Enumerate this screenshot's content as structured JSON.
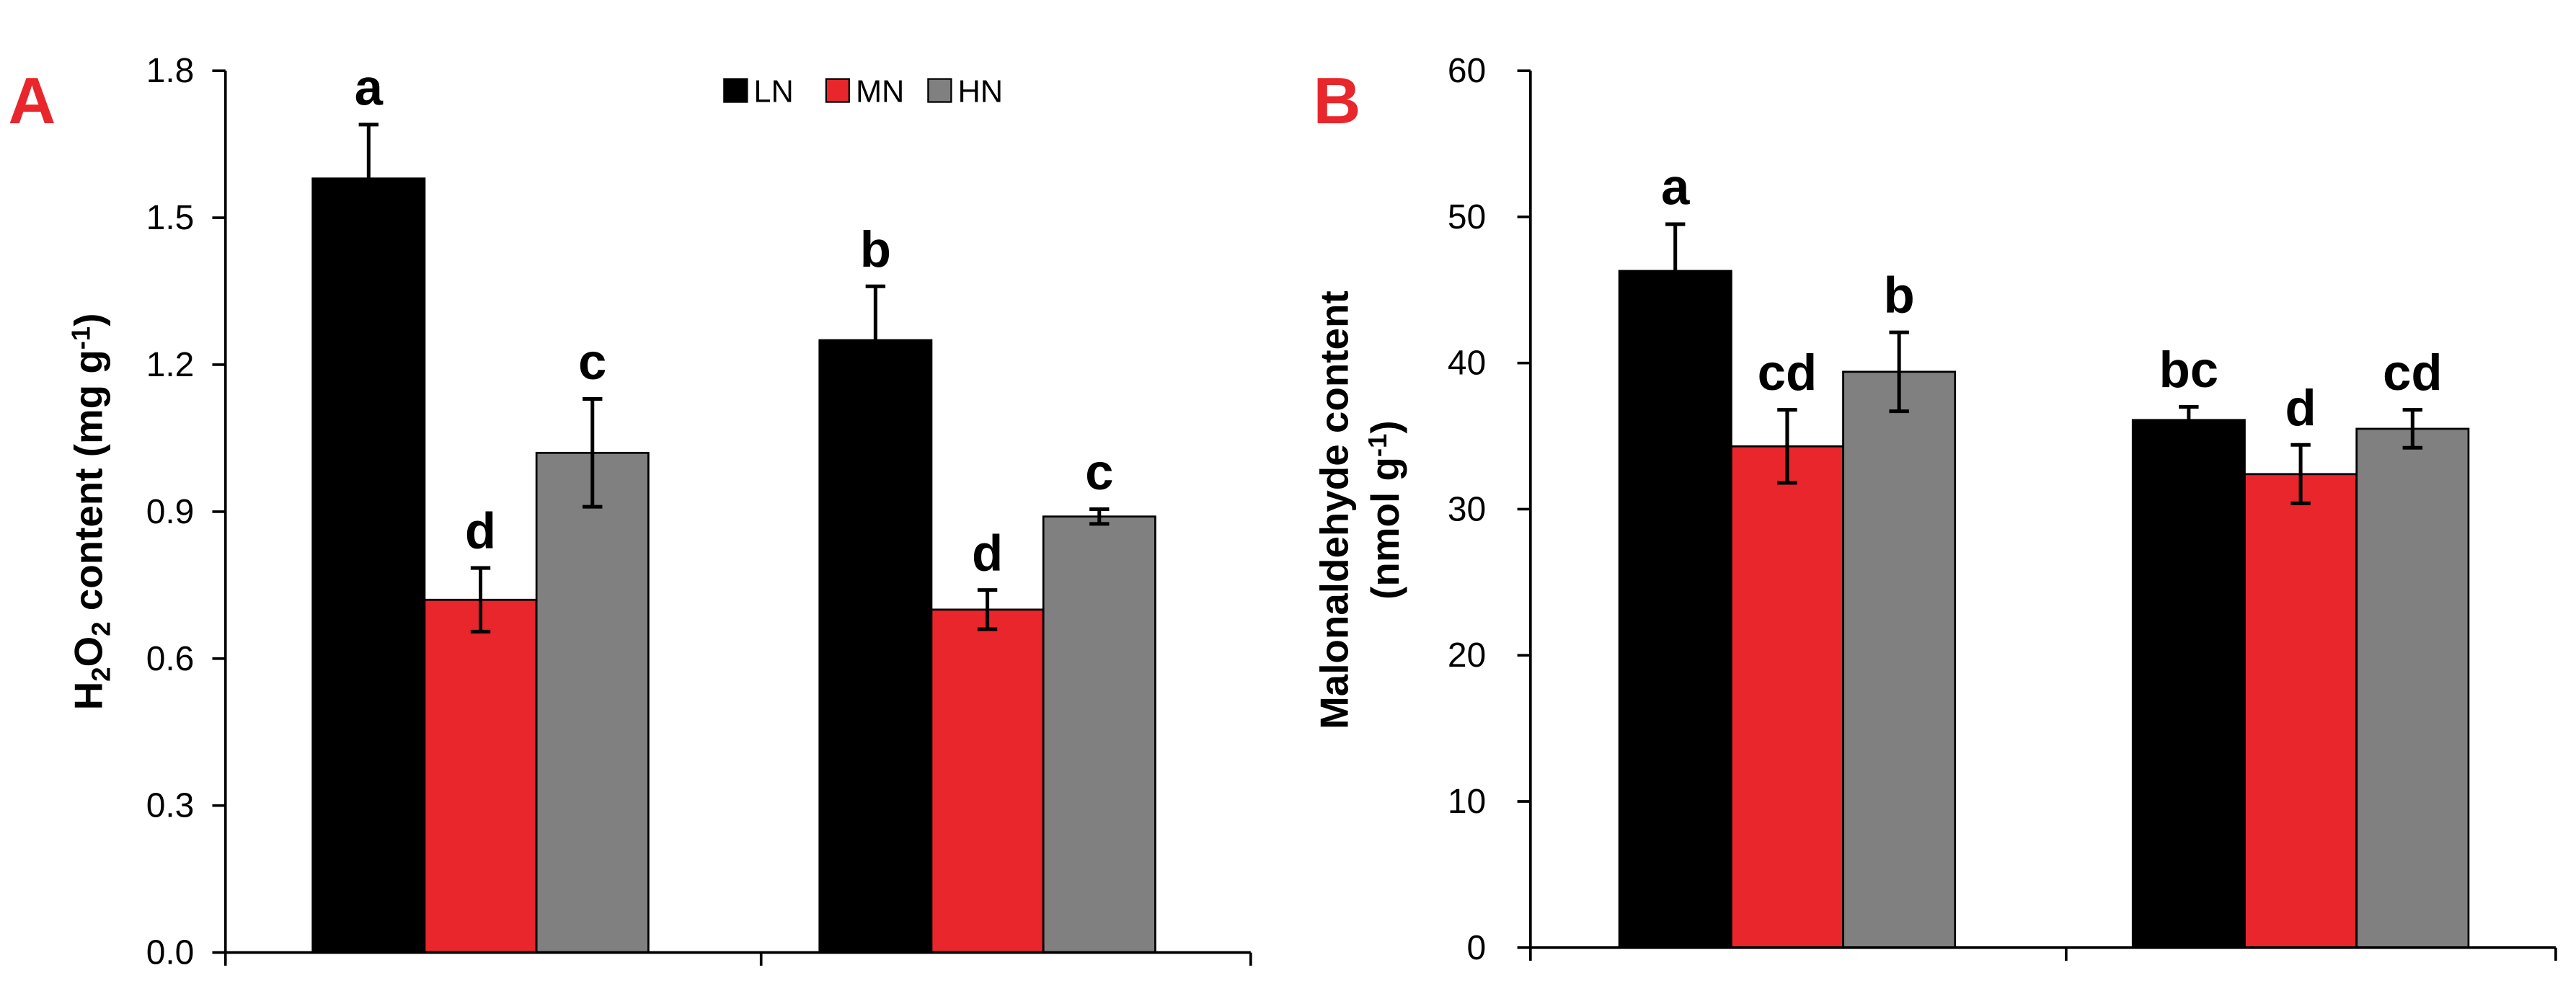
{
  "chart_data": [
    {
      "type": "bar",
      "panel": "A",
      "title": "",
      "xlabel": "",
      "ylabel_parts": [
        "H",
        "2",
        "O",
        "2",
        " content (mg g",
        "-1",
        ")"
      ],
      "ylim": [
        0,
        1.8
      ],
      "yticks": [
        "0.0",
        "0.3",
        "0.6",
        "0.9",
        "1.2",
        "1.5",
        "1.8"
      ],
      "categories": [
        "",
        ""
      ],
      "legend": {
        "position": "top-right",
        "entries": [
          "LN",
          "MN",
          "HN"
        ]
      },
      "series": [
        {
          "name": "LN",
          "color": "#000000",
          "values": [
            1.58,
            1.25
          ],
          "errors": [
            0.11,
            0.11
          ],
          "labels": [
            "a",
            "b"
          ]
        },
        {
          "name": "MN",
          "color": "#e8262b",
          "values": [
            0.72,
            0.7
          ],
          "errors": [
            0.065,
            0.04
          ],
          "labels": [
            "d",
            "d"
          ]
        },
        {
          "name": "HN",
          "color": "#808080",
          "values": [
            1.02,
            0.89
          ],
          "errors": [
            0.11,
            0.015
          ],
          "labels": [
            "c",
            "c"
          ]
        }
      ]
    },
    {
      "type": "bar",
      "panel": "B",
      "title": "",
      "xlabel": "",
      "ylabel_line1": "Malonaldehyde content",
      "ylabel_line2_parts": [
        "(nmol g",
        "-1",
        ")"
      ],
      "ylim": [
        0,
        60
      ],
      "yticks": [
        "0",
        "10",
        "20",
        "30",
        "40",
        "50",
        "60"
      ],
      "categories": [
        "",
        ""
      ],
      "series": [
        {
          "name": "LN",
          "color": "#000000",
          "values": [
            46.3,
            36.1
          ],
          "errors": [
            3.2,
            0.9
          ],
          "labels": [
            "a",
            "bc"
          ]
        },
        {
          "name": "MN",
          "color": "#e8262b",
          "values": [
            34.3,
            32.4
          ],
          "errors": [
            2.5,
            2.0
          ],
          "labels": [
            "cd",
            "d"
          ]
        },
        {
          "name": "HN",
          "color": "#808080",
          "values": [
            39.4,
            35.5
          ],
          "errors": [
            2.7,
            1.3
          ],
          "labels": [
            "b",
            "cd"
          ]
        }
      ]
    }
  ]
}
